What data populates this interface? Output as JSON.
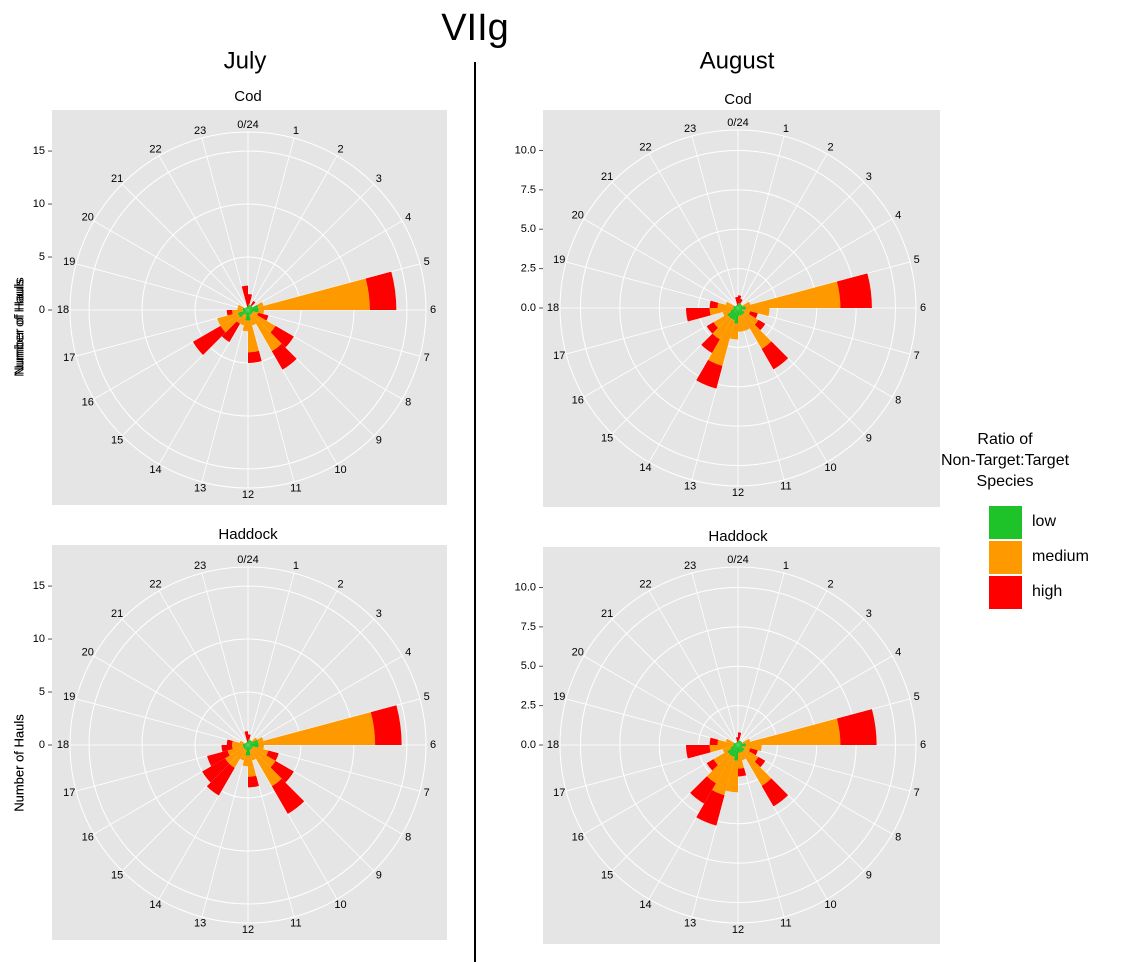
{
  "title": "VIIg",
  "columns": [
    "July",
    "August"
  ],
  "legend": {
    "title": [
      "Ratio of",
      "Non-Target:Target",
      "Species"
    ],
    "position": "right"
  },
  "chart_data": [
    {
      "type": "polar-bar",
      "title": "Cod",
      "ylabel": "Number of Hauls",
      "categories": [
        "0/24",
        "1",
        "2",
        "3",
        "4",
        "5",
        "6",
        "7",
        "8",
        "9",
        "10",
        "11",
        "12",
        "13",
        "14",
        "15",
        "16",
        "17",
        "18",
        "19",
        "20",
        "21",
        "22",
        "23"
      ],
      "series": [
        {
          "name": "low",
          "color": "#1ec32a",
          "values": [
            0.5,
            0.5,
            0.5,
            0.5,
            1,
            1,
            1,
            0.5,
            0.5,
            0.5,
            0.5,
            1,
            1,
            0.5,
            0.5,
            1,
            1,
            0.5,
            0.5,
            0.5,
            0.3,
            0.3,
            0.3,
            0.3
          ]
        },
        {
          "name": "medium",
          "color": "#ff9900",
          "values": [
            0,
            0,
            0,
            0,
            0.5,
            10.5,
            0.5,
            0.5,
            2.5,
            4,
            1,
            3,
            1,
            1,
            1,
            2,
            2,
            1,
            0.5,
            0.5,
            0,
            0,
            0,
            0
          ]
        },
        {
          "name": "high",
          "color": "#ff0000",
          "values": [
            1,
            0,
            0.5,
            0,
            0,
            2.5,
            0,
            1,
            2,
            2,
            0,
            1,
            0,
            0,
            2,
            3,
            0,
            0.5,
            0,
            0,
            0,
            0,
            0,
            2
          ]
        }
      ],
      "ylim": [
        0,
        16.8
      ],
      "yticks": [
        0,
        5,
        10,
        15
      ],
      "grid": true
    },
    {
      "type": "polar-bar",
      "title": "Haddock",
      "ylabel": "Number of Hauls",
      "categories": [
        "0/24",
        "1",
        "2",
        "3",
        "4",
        "5",
        "6",
        "7",
        "8",
        "9",
        "10",
        "11",
        "12",
        "13",
        "14",
        "15",
        "16",
        "17",
        "18",
        "19",
        "20",
        "21",
        "22",
        "23"
      ],
      "series": [
        {
          "name": "low",
          "color": "#1ec32a",
          "values": [
            0.5,
            0.5,
            0.5,
            0.5,
            1,
            1,
            1,
            0.5,
            0.5,
            0.5,
            0.5,
            1,
            1,
            0.5,
            0.5,
            0.5,
            0.5,
            0.5,
            0.5,
            0.3,
            0.3,
            0.3,
            0.3,
            0.3
          ]
        },
        {
          "name": "medium",
          "color": "#ff9900",
          "values": [
            0,
            0,
            0,
            0.5,
            0.5,
            11,
            0.5,
            1.5,
            2.5,
            4,
            1,
            2,
            1,
            1,
            2,
            2,
            1.5,
            1,
            1,
            0.5,
            0,
            0,
            0,
            0
          ]
        },
        {
          "name": "high",
          "color": "#ff0000",
          "values": [
            0.5,
            0,
            0,
            0,
            0,
            2.5,
            0,
            1,
            2,
            3,
            0,
            1,
            0,
            0,
            3,
            2.5,
            2,
            1,
            0.5,
            0,
            0,
            0,
            0,
            1
          ]
        }
      ],
      "ylim": [
        0,
        16.8
      ],
      "yticks": [
        0,
        5,
        10,
        15
      ],
      "grid": true
    },
    {
      "type": "polar-bar",
      "title": "Cod",
      "ylabel": "Number of Hauls",
      "categories": [
        "0/24",
        "1",
        "2",
        "3",
        "4",
        "5",
        "6",
        "7",
        "8",
        "9",
        "10",
        "11",
        "12",
        "13",
        "14",
        "15",
        "16",
        "17",
        "18",
        "19",
        "20",
        "21",
        "22",
        "23"
      ],
      "series": [
        {
          "name": "low",
          "color": "#1ec32a",
          "values": [
            0.3,
            0.3,
            0.3,
            0.3,
            0.3,
            0.5,
            0.5,
            0.3,
            0.5,
            0.5,
            0.5,
            0.5,
            1,
            0.8,
            0.8,
            0.8,
            0.5,
            0.3,
            0.3,
            0.3,
            0.2,
            0.2,
            0.2,
            0.2
          ]
        },
        {
          "name": "medium",
          "color": "#ff9900",
          "values": [
            0,
            0,
            0,
            0,
            0.5,
            6,
            1.5,
            0.5,
            1,
            2.5,
            1,
            1,
            1,
            3,
            1.5,
            1,
            0.5,
            1.5,
            1,
            0.5,
            0,
            0,
            0,
            0
          ]
        },
        {
          "name": "high",
          "color": "#ff0000",
          "values": [
            0.5,
            0.3,
            0,
            0,
            0,
            2,
            0,
            0.5,
            0.5,
            1.5,
            0,
            0,
            0,
            1.5,
            1,
            0.5,
            0,
            1.5,
            0.5,
            0,
            0,
            0,
            0,
            0.5
          ]
        }
      ],
      "ylim": [
        0,
        11.3
      ],
      "yticks": [
        {
          "value": 0,
          "label": "0.0"
        },
        2.5,
        {
          "value": 5,
          "label": "5.0"
        },
        7.5,
        {
          "value": 10,
          "label": "10.0"
        }
      ],
      "grid": true
    },
    {
      "type": "polar-bar",
      "title": "Haddock",
      "ylabel": "Number of Hauls",
      "categories": [
        "0/24",
        "1",
        "2",
        "3",
        "4",
        "5",
        "6",
        "7",
        "8",
        "9",
        "10",
        "11",
        "12",
        "13",
        "14",
        "15",
        "16",
        "17",
        "18",
        "19",
        "20",
        "21",
        "22",
        "23"
      ],
      "series": [
        {
          "name": "low",
          "color": "#1ec32a",
          "values": [
            0.3,
            0.3,
            0.3,
            0.3,
            0.3,
            0.5,
            0.5,
            0.3,
            0.5,
            0.5,
            0.5,
            0.5,
            1,
            0.8,
            0.8,
            0.8,
            0.5,
            0.3,
            0.3,
            0.3,
            0.2,
            0.2,
            0.2,
            0.2
          ]
        },
        {
          "name": "medium",
          "color": "#ff9900",
          "values": [
            0,
            0,
            0,
            0,
            0.5,
            6,
            1,
            0.5,
            1,
            2.5,
            0.5,
            1,
            2,
            2.5,
            2,
            1,
            0.5,
            1.5,
            1,
            0.5,
            0,
            0,
            0,
            0
          ]
        },
        {
          "name": "high",
          "color": "#ff0000",
          "values": [
            0.5,
            0,
            0,
            0,
            0,
            2.3,
            0,
            0.5,
            0.5,
            1.5,
            0,
            0.5,
            0,
            2,
            1.5,
            0.5,
            0,
            1.5,
            0.5,
            0,
            0,
            0,
            0,
            0.3
          ]
        }
      ],
      "ylim": [
        0,
        11.3
      ],
      "yticks": [
        {
          "value": 0,
          "label": "0.0"
        },
        2.5,
        {
          "value": 5,
          "label": "5.0"
        },
        7.5,
        {
          "value": 10,
          "label": "10.0"
        }
      ],
      "grid": true
    }
  ]
}
